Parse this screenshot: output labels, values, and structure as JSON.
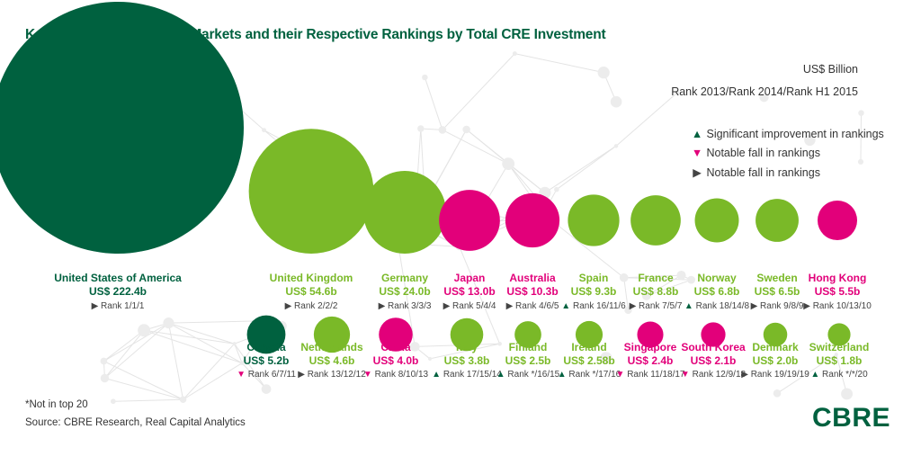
{
  "title": "Key Destinations: Top 20 Markets and their Respective Rankings by Total CRE Investment",
  "unit_label": "US$ Billion",
  "rank_label": "Rank 2013/Rank 2014/Rank H1 2015",
  "legend": [
    {
      "symbol": "triangle-up-icon",
      "color": "#00613f",
      "label": "Significant improvement in rankings"
    },
    {
      "symbol": "triangle-down-icon",
      "color": "#e2007a",
      "label": "Notable fall in rankings"
    },
    {
      "symbol": "triangle-right-icon",
      "color": "#444444",
      "label": "Notable fall in rankings"
    }
  ],
  "colors": {
    "dark_green": "#00613f",
    "light_green": "#7ab928",
    "magenta": "#e2007a",
    "text": "#333333"
  },
  "chart_data": {
    "type": "bubble",
    "unit": "US$ Billion",
    "markets": [
      {
        "name": "United States of America",
        "value": 222.4,
        "value_label": "US$ 222.4b",
        "rank_label": "Rank 1/1/1",
        "trend": "steady",
        "color": "dark_green",
        "row": 1
      },
      {
        "name": "United Kingdom",
        "value": 54.6,
        "value_label": "US$ 54.6b",
        "rank_label": "Rank 2/2/2",
        "trend": "steady",
        "color": "light_green",
        "row": 1
      },
      {
        "name": "Germany",
        "value": 24.0,
        "value_label": "US$ 24.0b",
        "rank_label": "Rank 3/3/3",
        "trend": "steady",
        "color": "light_green",
        "row": 1
      },
      {
        "name": "Japan",
        "value": 13.0,
        "value_label": "US$ 13.0b",
        "rank_label": "Rank 5/4/4",
        "trend": "steady",
        "color": "magenta",
        "row": 1
      },
      {
        "name": "Australia",
        "value": 10.3,
        "value_label": "US$ 10.3b",
        "rank_label": "Rank 4/6/5",
        "trend": "steady",
        "color": "magenta",
        "row": 1
      },
      {
        "name": "Spain",
        "value": 9.3,
        "value_label": "US$ 9.3b",
        "rank_label": "Rank 16/11/6",
        "trend": "up",
        "color": "light_green",
        "row": 1
      },
      {
        "name": "France",
        "value": 8.8,
        "value_label": "US$ 8.8b",
        "rank_label": "Rank 7/5/7",
        "trend": "steady",
        "color": "light_green",
        "row": 1
      },
      {
        "name": "Norway",
        "value": 6.8,
        "value_label": "US$ 6.8b",
        "rank_label": "Rank 18/14/8",
        "trend": "up",
        "color": "light_green",
        "row": 1
      },
      {
        "name": "Sweden",
        "value": 6.5,
        "value_label": "US$ 6.5b",
        "rank_label": "Rank 9/8/9",
        "trend": "steady",
        "color": "light_green",
        "row": 1
      },
      {
        "name": "Hong Kong",
        "value": 5.5,
        "value_label": "US$ 5.5b",
        "rank_label": "Rank 10/13/10",
        "trend": "steady",
        "color": "magenta",
        "row": 1
      },
      {
        "name": "Canada",
        "value": 5.2,
        "value_label": "US$ 5.2b",
        "rank_label": "Rank 6/7/11",
        "trend": "down",
        "color": "dark_green",
        "row": 2
      },
      {
        "name": "Netherlands",
        "value": 4.6,
        "value_label": "US$ 4.6b",
        "rank_label": "Rank 13/12/12",
        "trend": "steady",
        "color": "light_green",
        "row": 2
      },
      {
        "name": "China",
        "value": 4.0,
        "value_label": "US$ 4.0b",
        "rank_label": "Rank 8/10/13",
        "trend": "down",
        "color": "magenta",
        "row": 2
      },
      {
        "name": "Italy",
        "value": 3.8,
        "value_label": "US$ 3.8b",
        "rank_label": "Rank 17/15/14",
        "trend": "up",
        "color": "light_green",
        "row": 2
      },
      {
        "name": "Finland",
        "value": 2.5,
        "value_label": "US$ 2.5b",
        "rank_label": "Rank */16/15",
        "trend": "up",
        "color": "light_green",
        "row": 2
      },
      {
        "name": "Ireland",
        "value": 2.58,
        "value_label": "US$ 2.58b",
        "rank_label": "Rank */17/16",
        "trend": "up",
        "color": "light_green",
        "row": 2
      },
      {
        "name": "Singapore",
        "value": 2.4,
        "value_label": "US$ 2.4b",
        "rank_label": "Rank 11/18/17",
        "trend": "down",
        "color": "magenta",
        "row": 2
      },
      {
        "name": "South Korea",
        "value": 2.1,
        "value_label": "US$ 2.1b",
        "rank_label": "Rank 12/9/18",
        "trend": "down",
        "color": "magenta",
        "row": 2
      },
      {
        "name": "Denmark",
        "value": 2.0,
        "value_label": "US$ 2.0b",
        "rank_label": "Rank 19/19/19",
        "trend": "steady",
        "color": "light_green",
        "row": 2
      },
      {
        "name": "Switzerland",
        "value": 1.8,
        "value_label": "US$ 1.8b",
        "rank_label": "Rank */*/20",
        "trend": "up",
        "color": "light_green",
        "row": 2
      }
    ]
  },
  "footnote": "*Not in top 20",
  "source": "Source: CBRE Research, Real Capital Analytics",
  "logo": "CBRE"
}
